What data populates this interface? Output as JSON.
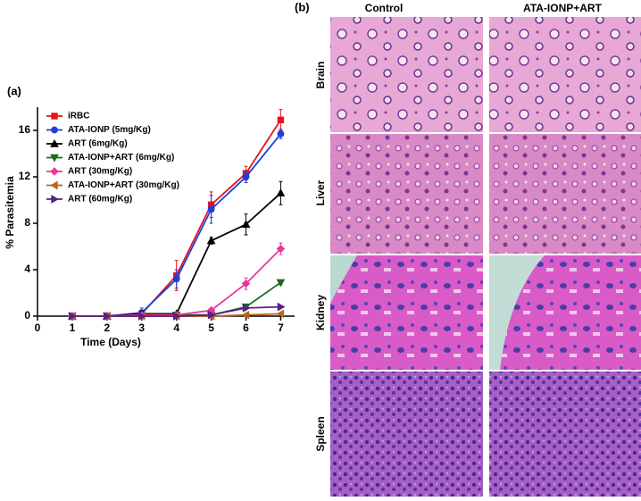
{
  "chart_data": {
    "type": "line",
    "x_label": "Time (Days)",
    "y_label": "% Parasitemia",
    "x": [
      1,
      2,
      3,
      4,
      5,
      6,
      7
    ],
    "xlim": [
      0,
      7.4
    ],
    "xticks": [
      0,
      1,
      2,
      3,
      4,
      5,
      6,
      7
    ],
    "ylim": [
      0,
      18
    ],
    "yticks": [
      0,
      4,
      8,
      12,
      16
    ],
    "series": [
      {
        "name": "iRBC",
        "color": "#e8141c",
        "marker": "square",
        "values": [
          0,
          0,
          0.2,
          3.5,
          9.6,
          12.3,
          16.9
        ],
        "errors": [
          0,
          0,
          0.3,
          1.3,
          1.1,
          0.6,
          0.9
        ]
      },
      {
        "name": "ATA-IONP (5mg/Kg)",
        "color": "#1f3fd9",
        "marker": "circle",
        "values": [
          0,
          0,
          0.3,
          3.2,
          9.2,
          12,
          15.7
        ],
        "errors": [
          0,
          0,
          0.4,
          0.8,
          1.2,
          0.5,
          0.4
        ]
      },
      {
        "name": "ART (6mg/Kg)",
        "color": "#000000",
        "marker": "triangle-up",
        "values": [
          0,
          0,
          0.2,
          0.2,
          6.5,
          7.9,
          10.6
        ],
        "errors": [
          0,
          0,
          0.2,
          0.1,
          0.3,
          0.9,
          1
        ]
      },
      {
        "name": "ATA-IONP+ART (6mg/Kg)",
        "color": "#1a6b1a",
        "marker": "triangle-down",
        "values": [
          0,
          0,
          0,
          0.1,
          0.1,
          0.8,
          2.9
        ],
        "errors": [
          0,
          0,
          0,
          0,
          0,
          0.2,
          0.2
        ]
      },
      {
        "name": "ART (30mg/Kg)",
        "color": "#e8399a",
        "marker": "diamond",
        "values": [
          0,
          0,
          0.1,
          0.1,
          0.5,
          2.8,
          5.8
        ],
        "errors": [
          0,
          0,
          0,
          0,
          0.1,
          0.5,
          0.5
        ]
      },
      {
        "name": "ATA-IONP+ART (30mg/Kg)",
        "color": "#b8651b",
        "marker": "triangle-left",
        "values": [
          0,
          0,
          0,
          0,
          0,
          0.1,
          0.2
        ],
        "errors": [
          0,
          0,
          0,
          0,
          0,
          0.1,
          0.1
        ]
      },
      {
        "name": "ART (60mg/Kg)",
        "color": "#5a1f8a",
        "marker": "triangle-right",
        "values": [
          0,
          0,
          0,
          0,
          0.1,
          0.7,
          0.8
        ],
        "errors": [
          0,
          0,
          0,
          0,
          0,
          0.1,
          0.1
        ]
      }
    ]
  },
  "panel_labels": [
    "(a)",
    "(b)"
  ],
  "histology": {
    "columns": [
      "Control",
      "ATA-IONP+ART"
    ],
    "rows": [
      "Brain",
      "Liver",
      "Kidney",
      "Spleen"
    ]
  }
}
